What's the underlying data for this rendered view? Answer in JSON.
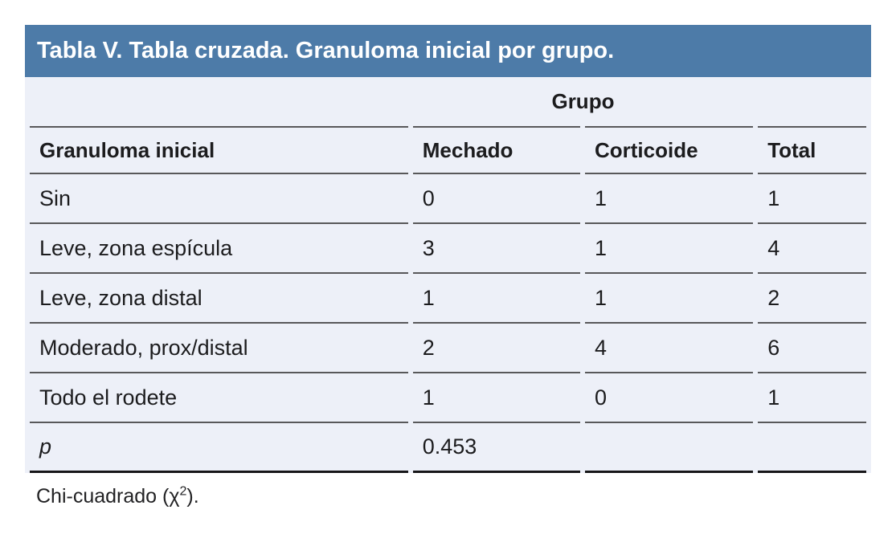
{
  "table": {
    "title": "Tabla V. Tabla cruzada. Granuloma inicial por grupo.",
    "group_header": "Grupo",
    "columns": [
      "Granuloma inicial",
      "Mechado",
      "Corticoide",
      "Total"
    ],
    "rows": [
      {
        "cells": [
          "Sin",
          "0",
          "1",
          "1"
        ]
      },
      {
        "cells": [
          "Leve, zona espícula",
          "3",
          "1",
          "4"
        ]
      },
      {
        "cells": [
          "Leve, zona distal",
          "1",
          "1",
          "2"
        ]
      },
      {
        "cells": [
          "Moderado, prox/distal",
          "2",
          "4",
          "6"
        ]
      },
      {
        "cells": [
          "Todo el rodete",
          "1",
          "0",
          "1"
        ]
      }
    ],
    "p_row": {
      "label": "p",
      "value": "0.453"
    },
    "footnote_prefix": "Chi-cuadrado (χ",
    "footnote_sup": "2",
    "footnote_suffix": ").",
    "colors": {
      "title_bar": "#4d7ba8",
      "title_text": "#ffffff",
      "body_background": "#edf0f8",
      "inner_rule": "#58585a",
      "bottom_rule": "#161618",
      "text": "#1c1c1e",
      "page_background": "#ffffff"
    }
  }
}
